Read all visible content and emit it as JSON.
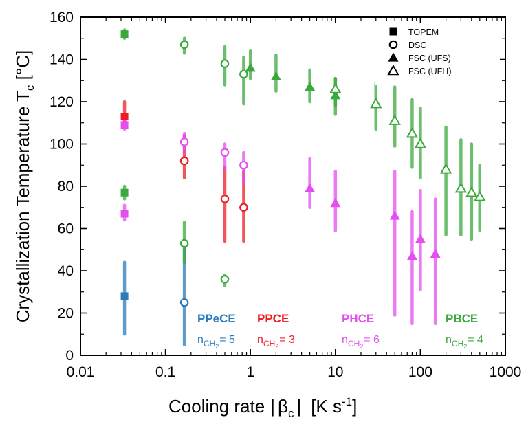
{
  "chart_data": {
    "type": "scatter",
    "xscale": "log",
    "xlim": [
      0.01,
      1000
    ],
    "ylim": [
      0,
      160
    ],
    "xticks": [
      0.01,
      0.1,
      1,
      10,
      100,
      1000
    ],
    "xtick_labels": [
      "0.01",
      "0.1",
      "1",
      "10",
      "100",
      "1000"
    ],
    "yticks": [
      0,
      20,
      40,
      60,
      80,
      100,
      120,
      140,
      160
    ],
    "ytick_labels": [
      "0",
      "20",
      "40",
      "60",
      "80",
      "100",
      "120",
      "140",
      "160"
    ],
    "xlabel": {
      "main": "Cooling rate",
      "beta": "β",
      "beta_sub": "c",
      "unit": "[K s",
      "unit_sup": "-1",
      "unit_end": "]"
    },
    "ylabel": {
      "main": "Crystallization Temperature T",
      "sub": "c",
      "unit": " [°C]"
    },
    "grid": false,
    "legend": {
      "position": "top-right",
      "entries": [
        {
          "marker": "square-filled",
          "label": "TOPEM"
        },
        {
          "marker": "circle-open",
          "label": "DSC"
        },
        {
          "marker": "triangle-filled",
          "label": "FSC (UFS)"
        },
        {
          "marker": "triangle-open",
          "label": "FSC (UFH)"
        }
      ]
    },
    "series": [
      {
        "name": "PPeCE",
        "n_label": "n",
        "n_sub": "CH",
        "n_sub2": "2",
        "n_value": "= 5",
        "color": "#2b7bba",
        "points": [
          {
            "x": 0.033,
            "y": 28,
            "marker": "square-filled",
            "err": [
              10,
              44
            ]
          },
          {
            "x": 0.167,
            "y": 25,
            "marker": "circle-open",
            "err": [
              5,
              52
            ]
          }
        ]
      },
      {
        "name": "PPCE",
        "n_label": "n",
        "n_sub": "CH",
        "n_sub2": "2",
        "n_value": "= 3",
        "color": "#ee1c24",
        "points": [
          {
            "x": 0.033,
            "y": 113,
            "marker": "square-filled",
            "err": [
              110,
              120
            ]
          },
          {
            "x": 0.167,
            "y": 92,
            "marker": "circle-open",
            "err": [
              84,
              104
            ]
          },
          {
            "x": 0.5,
            "y": 74,
            "marker": "circle-open",
            "err": [
              54,
              89
            ]
          },
          {
            "x": 0.833,
            "y": 70,
            "marker": "circle-open",
            "err": [
              54,
              87
            ]
          }
        ]
      },
      {
        "name": "PHCE",
        "n_label": "n",
        "n_sub": "CH",
        "n_sub2": "2",
        "n_value": "= 6",
        "color": "#e44ff0",
        "points": [
          {
            "x": 0.033,
            "y": 109,
            "marker": "square-filled",
            "err": [
              107,
              111
            ]
          },
          {
            "x": 0.033,
            "y": 67,
            "marker": "square-filled",
            "err": [
              64,
              71
            ]
          },
          {
            "x": 0.167,
            "y": 101,
            "marker": "circle-open",
            "err": [
              96,
              105
            ]
          },
          {
            "x": 0.5,
            "y": 96,
            "marker": "circle-open",
            "err": [
              88,
              100
            ]
          },
          {
            "x": 0.833,
            "y": 90,
            "marker": "circle-open",
            "err": [
              82,
              96
            ]
          },
          {
            "x": 5,
            "y": 79,
            "marker": "triangle-filled",
            "err": [
              70,
              93
            ]
          },
          {
            "x": 10,
            "y": 72,
            "marker": "triangle-filled",
            "err": [
              59,
              87
            ]
          },
          {
            "x": 50,
            "y": 66,
            "marker": "triangle-filled",
            "err": [
              19,
              87
            ]
          },
          {
            "x": 80,
            "y": 47,
            "marker": "triangle-filled",
            "err": [
              15,
              68
            ]
          },
          {
            "x": 100,
            "y": 55,
            "marker": "triangle-filled",
            "err": [
              31,
              78
            ]
          },
          {
            "x": 150,
            "y": 48,
            "marker": "triangle-filled",
            "err": [
              15,
              74
            ]
          }
        ]
      },
      {
        "name": "PBCE",
        "n_label": "n",
        "n_sub": "CH",
        "n_sub2": "2",
        "n_value": "= 4",
        "color": "#3aa83a",
        "points": [
          {
            "x": 0.033,
            "y": 152,
            "marker": "square-filled",
            "err": [
              150,
              154
            ]
          },
          {
            "x": 0.033,
            "y": 77,
            "marker": "square-filled",
            "err": [
              74,
              80
            ]
          },
          {
            "x": 0.167,
            "y": 147,
            "marker": "circle-open",
            "err": [
              143,
              150
            ]
          },
          {
            "x": 0.167,
            "y": 53,
            "marker": "circle-open",
            "err": [
              44,
              63
            ]
          },
          {
            "x": 0.5,
            "y": 138,
            "marker": "circle-open",
            "err": [
              128,
              146
            ]
          },
          {
            "x": 0.5,
            "y": 36,
            "marker": "circle-open",
            "err": [
              33,
              38
            ]
          },
          {
            "x": 0.833,
            "y": 133,
            "marker": "circle-open",
            "err": [
              119,
              141
            ]
          },
          {
            "x": 1,
            "y": 136,
            "marker": "triangle-filled",
            "err": [
              131,
              144
            ]
          },
          {
            "x": 2,
            "y": 132,
            "marker": "triangle-filled",
            "err": [
              125,
              142
            ]
          },
          {
            "x": 5,
            "y": 127,
            "marker": "triangle-filled",
            "err": [
              120,
              135
            ]
          },
          {
            "x": 10,
            "y": 123,
            "marker": "triangle-filled",
            "err": [
              114,
              131
            ]
          },
          {
            "x": 10,
            "y": 126,
            "marker": "triangle-open",
            "err": [
              118,
              131
            ]
          },
          {
            "x": 30,
            "y": 119,
            "marker": "triangle-open",
            "err": [
              107,
              129
            ]
          },
          {
            "x": 50,
            "y": 111,
            "marker": "triangle-open",
            "err": [
              99,
              127
            ]
          },
          {
            "x": 80,
            "y": 105,
            "marker": "triangle-open",
            "err": [
              89,
              121
            ]
          },
          {
            "x": 100,
            "y": 100,
            "marker": "triangle-open",
            "err": [
              84,
              117
            ]
          },
          {
            "x": 200,
            "y": 88,
            "marker": "triangle-open",
            "err": [
              57,
              108
            ]
          },
          {
            "x": 300,
            "y": 79,
            "marker": "triangle-open",
            "err": [
              57,
              102
            ]
          },
          {
            "x": 400,
            "y": 77,
            "marker": "triangle-open",
            "err": [
              55,
              100
            ]
          },
          {
            "x": 500,
            "y": 75,
            "marker": "triangle-open",
            "err": [
              59,
              90
            ]
          }
        ]
      }
    ]
  }
}
